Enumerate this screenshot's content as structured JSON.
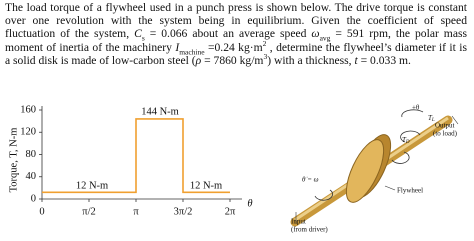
{
  "problem": {
    "runs": [
      "The load torque of a flywheel used in a punch press is shown below. The drive torque is constant over one revolution with the system being in equilibrium. Given the coefficient of speed fluctuation of the system, ",
      "C",
      "s",
      " = 0.066 about an average speed ",
      "ω",
      "avg",
      " = 591 rpm, the polar mass moment of inertia of the machinery ",
      "I",
      "machine",
      " =0.24 kg·m",
      "2",
      " , determine the flywheel’s diameter if it is a solid disk is made of low-carbon steel (",
      "ρ",
      " = 7860 kg/m",
      "3",
      ") with a thickness, ",
      "t",
      " = 0.033 m."
    ]
  },
  "chart_data": {
    "type": "line",
    "y_label": "Torque, T, N-m",
    "x_label": "θ",
    "x": [
      0,
      3.1416,
      3.1416,
      4.7124,
      4.7124,
      6.2832
    ],
    "series": [
      {
        "color": "#f0a030",
        "values": [
          12,
          12,
          144,
          144,
          12,
          12
        ]
      }
    ],
    "xlim": [
      0,
      6.2832
    ],
    "ylim": [
      0,
      160
    ],
    "xticks": [
      {
        "value": 0,
        "label": "0"
      },
      {
        "value": 1.5708,
        "label": "π/2"
      },
      {
        "value": 3.1416,
        "label": "π"
      },
      {
        "value": 4.7124,
        "label": "3π/2"
      },
      {
        "value": 6.2832,
        "label": "2π"
      }
    ],
    "yticks": [
      0,
      40,
      80,
      120,
      160
    ],
    "annotations": [
      "144 N-m",
      "12 N-m",
      "12 N-m"
    ]
  },
  "diagram": {
    "plus_theta": "+θ",
    "load_torque": [
      "T",
      "L"
    ],
    "drive_torque": [
      "T",
      "D"
    ],
    "speed": "θ̇ = ω",
    "output": [
      "Output",
      "(to load)"
    ],
    "flywheel": "Flywheel",
    "input": [
      "Input",
      "(from driver)"
    ]
  }
}
